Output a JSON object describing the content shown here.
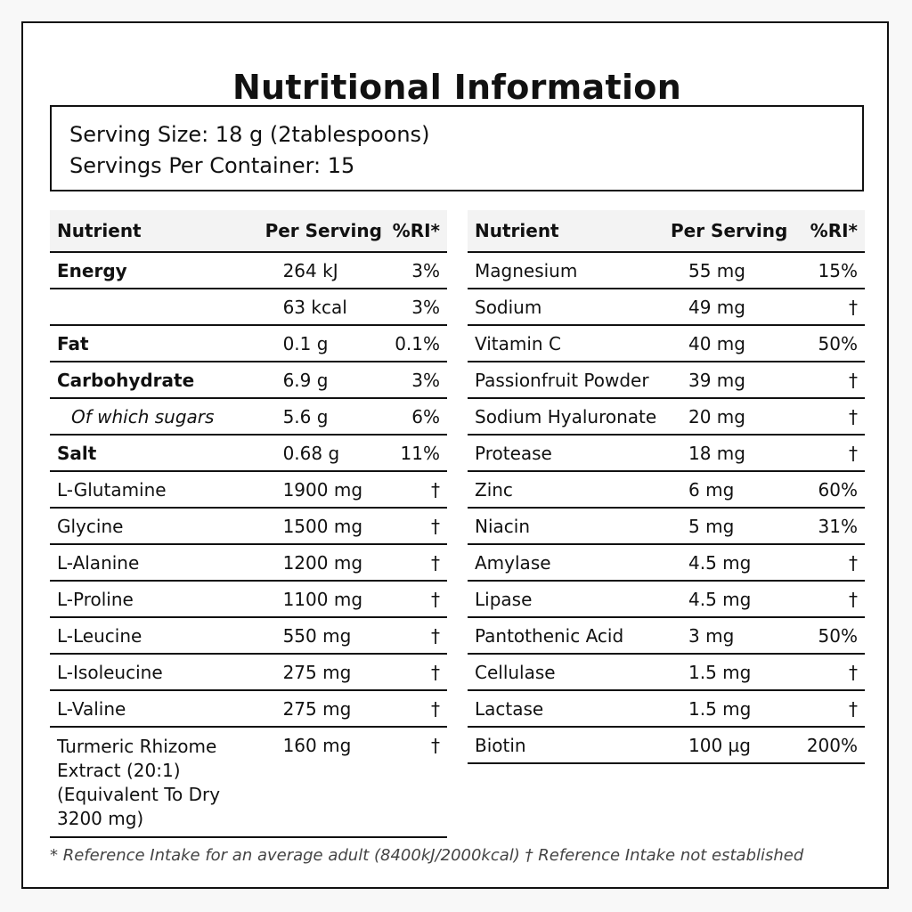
{
  "title": "Nutritional Information",
  "serving": {
    "size": "Serving Size: 18 g (2tablespoons)",
    "per_container": "Servings Per Container: 15"
  },
  "headers": {
    "nutrient": "Nutrient",
    "per_serving": "Per Serving",
    "ri": "%RI*"
  },
  "left_rows": [
    {
      "name": "Energy",
      "amount": "264 kJ",
      "ri": "3%",
      "style": "bold"
    },
    {
      "name": "",
      "amount": "63 kcal",
      "ri": "3%",
      "style": ""
    },
    {
      "name": "Fat",
      "amount": "0.1 g",
      "ri": "0.1%",
      "style": "bold"
    },
    {
      "name": "Carbohydrate",
      "amount": "6.9 g",
      "ri": "3%",
      "style": "bold"
    },
    {
      "name": "Of which sugars",
      "amount": "5.6 g",
      "ri": "6%",
      "style": "indent"
    },
    {
      "name": "Salt",
      "amount": "0.68 g",
      "ri": "11%",
      "style": "bold"
    },
    {
      "name": "L-Glutamine",
      "amount": "1900 mg",
      "ri": "†",
      "style": ""
    },
    {
      "name": "Glycine",
      "amount": "1500 mg",
      "ri": "†",
      "style": ""
    },
    {
      "name": "L-Alanine",
      "amount": "1200 mg",
      "ri": "†",
      "style": ""
    },
    {
      "name": "L-Proline",
      "amount": "1100 mg",
      "ri": "†",
      "style": ""
    },
    {
      "name": "L-Leucine",
      "amount": "550 mg",
      "ri": "†",
      "style": ""
    },
    {
      "name": "L-Isoleucine",
      "amount": "275 mg",
      "ri": "†",
      "style": ""
    },
    {
      "name": "L-Valine",
      "amount": "275 mg",
      "ri": "†",
      "style": ""
    },
    {
      "name": "Turmeric Rhizome Extract (20:1) (Equivalent To Dry 3200 mg)",
      "amount": "160 mg",
      "ri": "†",
      "style": "multi"
    }
  ],
  "right_rows": [
    {
      "name": "Magnesium",
      "amount": "55 mg",
      "ri": "15%"
    },
    {
      "name": "Sodium",
      "amount": "49 mg",
      "ri": "†"
    },
    {
      "name": "Vitamin C",
      "amount": "40 mg",
      "ri": "50%"
    },
    {
      "name": "Passionfruit Powder",
      "amount": "39 mg",
      "ri": "†"
    },
    {
      "name": "Sodium Hyaluronate",
      "amount": "20 mg",
      "ri": "†"
    },
    {
      "name": "Protease",
      "amount": "18 mg",
      "ri": "†"
    },
    {
      "name": "Zinc",
      "amount": "6 mg",
      "ri": "60%"
    },
    {
      "name": "Niacin",
      "amount": "5 mg",
      "ri": "31%"
    },
    {
      "name": "Amylase",
      "amount": "4.5 mg",
      "ri": "†"
    },
    {
      "name": "Lipase",
      "amount": "4.5 mg",
      "ri": "†"
    },
    {
      "name": "Pantothenic Acid",
      "amount": "3 mg",
      "ri": "50%"
    },
    {
      "name": "Cellulase",
      "amount": "1.5 mg",
      "ri": "†"
    },
    {
      "name": "Lactase",
      "amount": "1.5 mg",
      "ri": "†"
    },
    {
      "name": "Biotin",
      "amount": "100 µg",
      "ri": "200%"
    }
  ],
  "footnote": "* Reference Intake for an average adult (8400kJ/2000kcal) † Reference Intake not established"
}
